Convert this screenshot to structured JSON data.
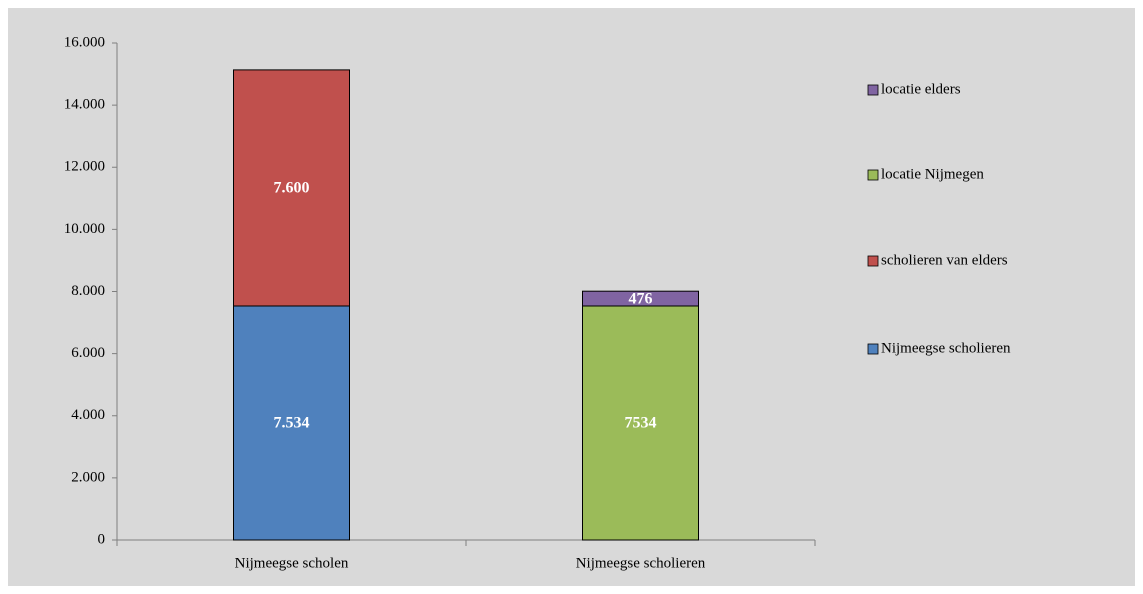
{
  "chart_data": {
    "type": "stacked_bar",
    "categories": [
      "Nijmeegse scholen",
      "Nijmeegse scholieren"
    ],
    "series": [
      {
        "name": "Nijmeegse scholieren",
        "color": "#4f81bd",
        "values": [
          7534,
          null
        ],
        "value_labels": [
          "7.534",
          null
        ]
      },
      {
        "name": "scholieren van elders",
        "color": "#c0504d",
        "values": [
          7600,
          null
        ],
        "value_labels": [
          "7.600",
          null
        ]
      },
      {
        "name": "locatie Nijmegen",
        "color": "#9bbb59",
        "values": [
          null,
          7534
        ],
        "value_labels": [
          null,
          "7534"
        ]
      },
      {
        "name": "locatie elders",
        "color": "#8064a2",
        "values": [
          null,
          476
        ],
        "value_labels": [
          null,
          "476"
        ]
      }
    ],
    "ylim": [
      0,
      16000
    ],
    "yticks": [
      0,
      {
        "value": 2000,
        "label": "2.000"
      },
      {
        "value": 4000,
        "label": "4.000"
      },
      {
        "value": 6000,
        "label": "6.000"
      },
      {
        "value": 8000,
        "label": "8.000"
      },
      {
        "value": 10000,
        "label": "10.000"
      },
      {
        "value": 12000,
        "label": "12.000"
      },
      {
        "value": 14000,
        "label": "14.000"
      },
      {
        "value": 16000,
        "label": "16.000"
      }
    ],
    "legend": "right"
  }
}
